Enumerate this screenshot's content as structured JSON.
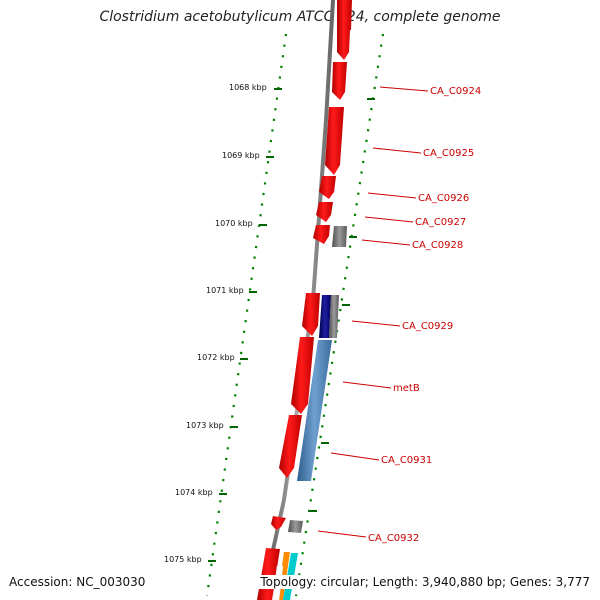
{
  "title": "Clostridium acetobutylicum ATCC 824, complete genome",
  "accession": "Accession: NC_003030",
  "stats": "Topology: circular; Length: 3,940,880 bp; Genes: 3,777",
  "ticks": [
    {
      "label": "1068 kbp"
    },
    {
      "label": "1069 kbp"
    },
    {
      "label": "1070 kbp"
    },
    {
      "label": "1071 kbp"
    },
    {
      "label": "1072 kbp"
    },
    {
      "label": "1073 kbp"
    },
    {
      "label": "1074 kbp"
    },
    {
      "label": "1075 kbp"
    }
  ],
  "genes": [
    {
      "label": "CA_C0924",
      "color": "#ff0000"
    },
    {
      "label": "CA_C0925",
      "color": "#ff0000"
    },
    {
      "label": "CA_C0926",
      "color": "#ff0000"
    },
    {
      "label": "CA_C0927",
      "color": "#ff0000"
    },
    {
      "label": "CA_C0928",
      "color": "#808080"
    },
    {
      "label": "CA_C0929",
      "color": "#000080"
    },
    {
      "label": "metB",
      "color": "#4682b4"
    },
    {
      "label": "CA_C0931",
      "color": "#4682b4"
    },
    {
      "label": "CA_C0932",
      "color": "#808080"
    }
  ],
  "colors": {
    "forward_gene": "#ff0000",
    "hypothetical": "#808080",
    "backbone": "#808080",
    "gc_skew_dots": "#008000",
    "label_text": "#cc0000"
  }
}
